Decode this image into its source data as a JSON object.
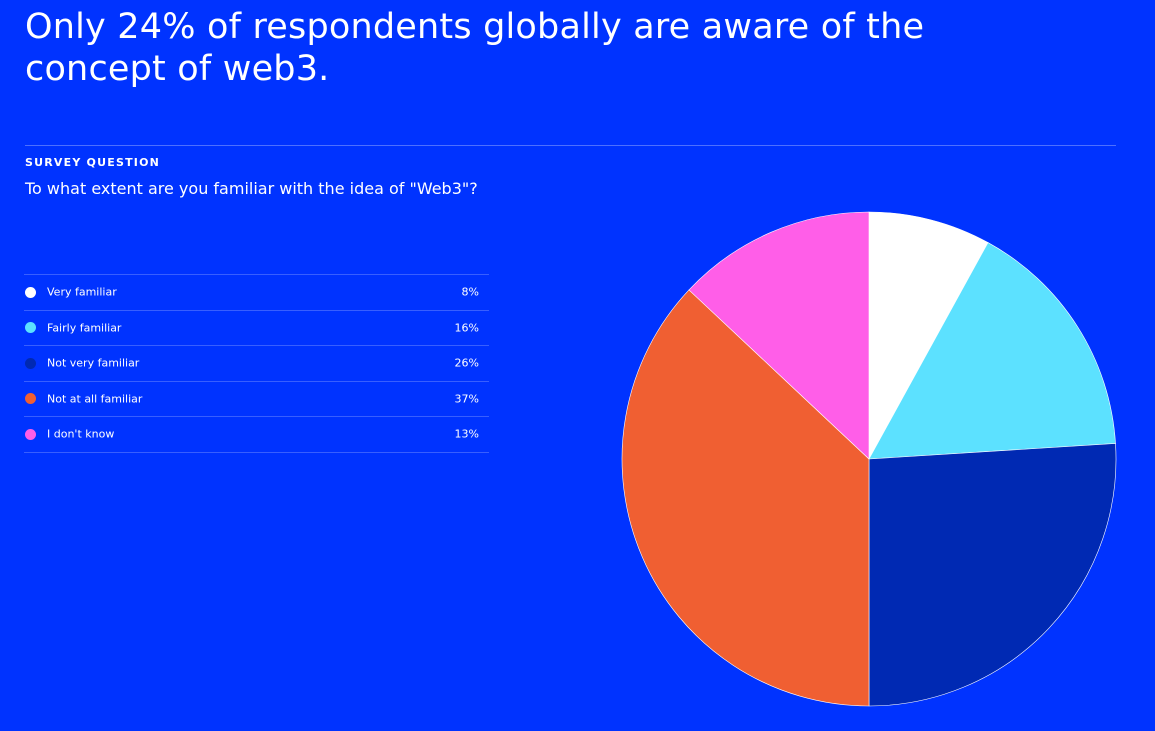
{
  "page": {
    "background": "#0033ff",
    "headline_line1": "Only 24% of respondents globally are aware of the",
    "headline_line2": "concept of web3.",
    "section_label": "SURVEY QUESTION",
    "question": "To what extent are you familiar with the idea of \"Web3\"?"
  },
  "chart_data": {
    "type": "pie",
    "title": "",
    "legend_position": "left",
    "slices": [
      {
        "label": "Very familiar",
        "value": 8,
        "display": "8%",
        "color": "#ffffff"
      },
      {
        "label": "Fairly familiar",
        "value": 16,
        "display": "16%",
        "color": "#5ce1ff"
      },
      {
        "label": "Not very familiar",
        "value": 26,
        "display": "26%",
        "color": "#0029b3"
      },
      {
        "label": "Not at all familiar",
        "value": 37,
        "display": "37%",
        "color": "#f05f32"
      },
      {
        "label": "I don't know",
        "value": 13,
        "display": "13%",
        "color": "#ff5ee8"
      }
    ]
  }
}
